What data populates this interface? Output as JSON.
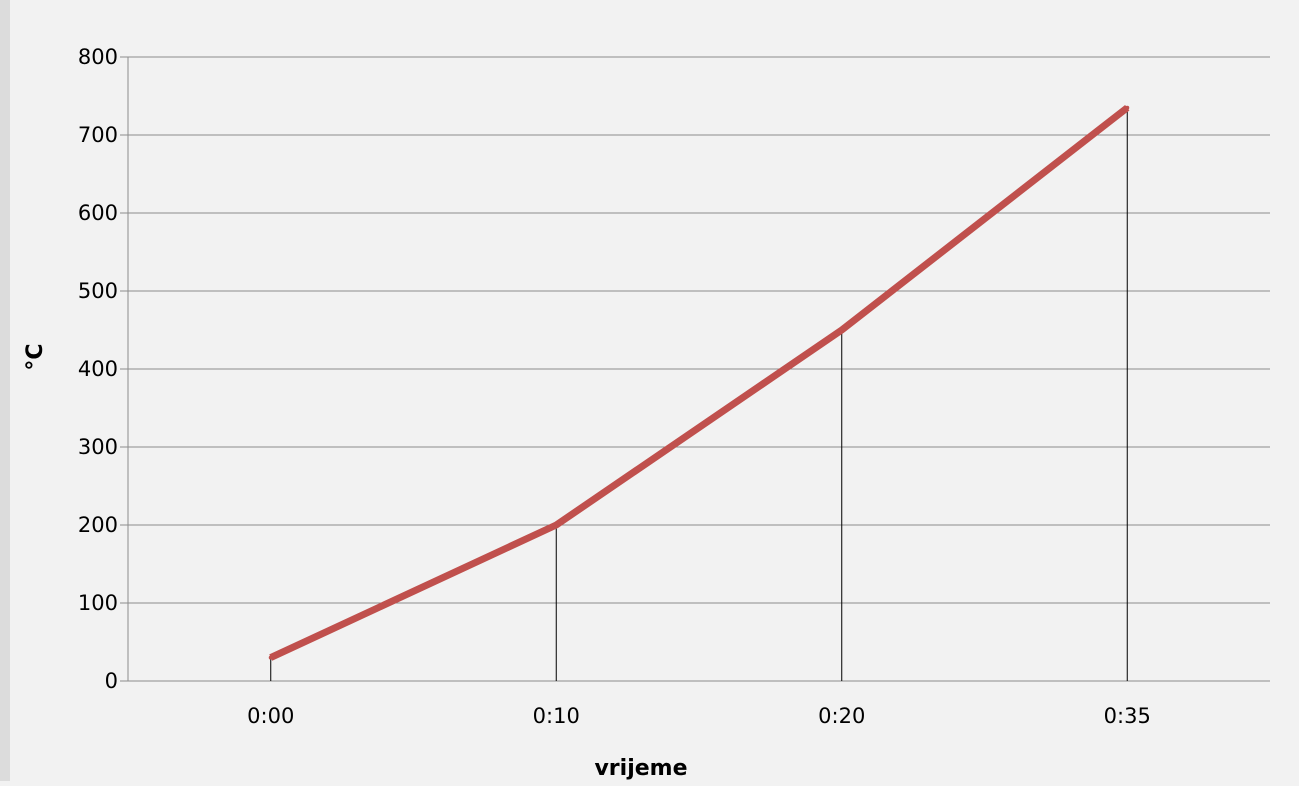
{
  "chart_data": {
    "type": "line",
    "categories": [
      "0:00",
      "0:10",
      "0:20",
      "0:35"
    ],
    "series": [
      {
        "values": [
          30,
          200,
          450,
          735
        ],
        "color": "#c0504d"
      }
    ],
    "title": "",
    "xlabel": "vrijeme",
    "ylabel": "°C",
    "ylim": [
      0,
      800
    ],
    "yticks": [
      0,
      100,
      200,
      300,
      400,
      500,
      600,
      700,
      800
    ],
    "grid": true,
    "drop_lines": true,
    "legend": "none"
  }
}
